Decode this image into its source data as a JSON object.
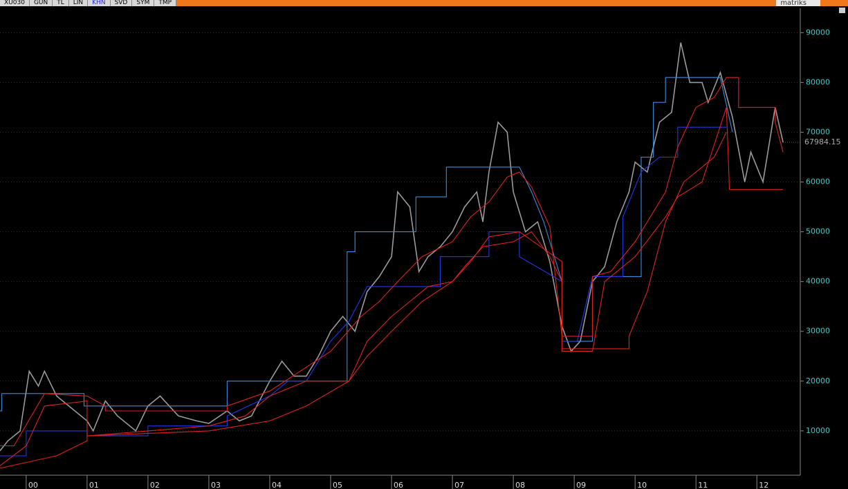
{
  "toolbar": {
    "tabs": [
      "XU030",
      "GUN",
      "TL",
      "LIN",
      "KHN",
      "SVD",
      "SYM",
      "TMP"
    ],
    "brand": "matriks"
  },
  "chart_data": {
    "type": "line",
    "xlim": [
      1999.57,
      2012.69
    ],
    "ylim": [
      1100,
      94900
    ],
    "xticks": [
      {
        "value": 2000,
        "label": "00"
      },
      {
        "value": 2001,
        "label": "01"
      },
      {
        "value": 2002,
        "label": "02"
      },
      {
        "value": 2003,
        "label": "03"
      },
      {
        "value": 2004,
        "label": "04"
      },
      {
        "value": 2005,
        "label": "05"
      },
      {
        "value": 2006,
        "label": "06"
      },
      {
        "value": 2007,
        "label": "07"
      },
      {
        "value": 2008,
        "label": "08"
      },
      {
        "value": 2009,
        "label": "09"
      },
      {
        "value": 2010,
        "label": "10"
      },
      {
        "value": 2011,
        "label": "11"
      },
      {
        "value": 2012,
        "label": "12"
      }
    ],
    "yticks": [
      10000,
      20000,
      30000,
      40000,
      50000,
      60000,
      70000,
      80000,
      90000
    ],
    "grid": true,
    "last_price": 67984.15,
    "series": [
      {
        "color": "#9a9a9a",
        "x": [
          1999.57,
          1999.7,
          1999.9,
          2000.05,
          2000.2,
          2000.3,
          2000.5,
          2000.8,
          2001.0,
          2001.1,
          2001.3,
          2001.5,
          2001.8,
          2002.0,
          2002.2,
          2002.5,
          2002.8,
          2003.0,
          2003.3,
          2003.5,
          2003.7,
          2004.0,
          2004.2,
          2004.4,
          2004.6,
          2004.8,
          2005.0,
          2005.2,
          2005.4,
          2005.6,
          2005.8,
          2006.0,
          2006.1,
          2006.3,
          2006.45,
          2006.6,
          2006.8,
          2007.0,
          2007.2,
          2007.4,
          2007.5,
          2007.6,
          2007.75,
          2007.9,
          2008.0,
          2008.2,
          2008.4,
          2008.6,
          2008.8,
          2008.95,
          2009.1,
          2009.3,
          2009.5,
          2009.7,
          2009.9,
          2010.0,
          2010.2,
          2010.4,
          2010.6,
          2010.75,
          2010.9,
          2011.1,
          2011.2,
          2011.4,
          2011.6,
          2011.8,
          2011.9,
          2012.1,
          2012.3,
          2012.43
        ],
        "values": [
          6000,
          8000,
          10000,
          22000,
          19000,
          22000,
          17000,
          14000,
          12000,
          10000,
          16000,
          13000,
          10000,
          15000,
          17000,
          13000,
          12000,
          11500,
          14000,
          12000,
          13000,
          20000,
          24000,
          21000,
          21000,
          25000,
          30000,
          33000,
          30000,
          38000,
          41000,
          45000,
          58000,
          55000,
          42000,
          45000,
          47000,
          50000,
          55000,
          58000,
          52000,
          62000,
          72000,
          70000,
          58000,
          50000,
          52000,
          44000,
          31000,
          26000,
          28000,
          40000,
          43000,
          52000,
          58000,
          64000,
          62000,
          72000,
          74000,
          88000,
          80000,
          80000,
          76000,
          82000,
          73000,
          60000,
          66000,
          60000,
          75000,
          68000
        ]
      },
      {
        "color": "#3c8cdc",
        "x": [
          1999.57,
          1999.6,
          1999.6,
          2000.95,
          2000.95,
          2003.3,
          2003.3,
          2005.27,
          2005.27,
          2005.4,
          2005.4,
          2006.4,
          2006.4,
          2006.9,
          2006.9,
          2008.1,
          2008.3,
          2008.5,
          2008.8,
          2008.8,
          2009.3,
          2009.3,
          2010.1,
          2010.1,
          2010.3,
          2010.3,
          2010.5,
          2010.5,
          2011.4,
          2011.6
        ],
        "values": [
          14000,
          14000,
          17500,
          17500,
          15000,
          15000,
          20000,
          20000,
          46000,
          46000,
          50000,
          50000,
          57000,
          57000,
          63000,
          63000,
          58000,
          52000,
          40000,
          28000,
          28000,
          41000,
          41000,
          65000,
          65000,
          76000,
          76000,
          81000,
          81000,
          70000
        ]
      },
      {
        "color": "#2038e8",
        "x": [
          1999.57,
          2000.0,
          2000.0,
          2001.0,
          2001.0,
          2002.0,
          2002.0,
          2003.3,
          2003.3,
          2004.0,
          2004.3,
          2004.6,
          2005.0,
          2005.3,
          2005.6,
          2006.0,
          2006.8,
          2006.8,
          2007.6,
          2007.6,
          2008.1,
          2008.1,
          2008.8,
          2008.8,
          2009.05,
          2009.3,
          2009.8,
          2009.8,
          2010.1,
          2010.4,
          2010.7,
          2010.7,
          2011.5
        ],
        "values": [
          5000,
          5000,
          10000,
          10000,
          9000,
          9000,
          11000,
          11000,
          13000,
          17000,
          20000,
          20000,
          28000,
          32000,
          39000,
          39000,
          39000,
          45000,
          45000,
          50000,
          50000,
          45000,
          40000,
          28000,
          28000,
          41000,
          41000,
          53000,
          62000,
          65000,
          65000,
          71000,
          71000
        ]
      },
      {
        "color": "#e02020",
        "x": [
          1999.57,
          1999.8,
          2000.3,
          2001.0,
          2001.0,
          2001.3,
          2001.3,
          2003.3,
          2003.3,
          2004.0,
          2004.5,
          2005.0,
          2005.5,
          2005.8,
          2006.1,
          2006.5,
          2007.0,
          2007.3,
          2007.6,
          2007.9,
          2008.1,
          2008.3,
          2008.6,
          2008.8,
          2009.3,
          2009.3,
          2009.6,
          2010.0,
          2010.5,
          2010.7,
          2011.0,
          2011.3,
          2011.5,
          2011.7,
          2011.7,
          2012.3,
          2012.3,
          2012.43
        ],
        "values": [
          7000,
          7000,
          17500,
          17000,
          17000,
          15000,
          14000,
          14000,
          15000,
          18000,
          22000,
          26000,
          33000,
          36000,
          40000,
          45000,
          48000,
          53000,
          56000,
          61000,
          62000,
          59000,
          51000,
          29000,
          29000,
          41000,
          42000,
          48000,
          58000,
          67000,
          75000,
          77000,
          81000,
          81000,
          75000,
          75000,
          72000,
          66000
        ]
      },
      {
        "color": "#e02020",
        "x": [
          1999.57,
          2000.0,
          2000.3,
          2001.0,
          2001.0,
          2002.0,
          2003.0,
          2003.6,
          2004.0,
          2004.6,
          2005.3,
          2005.6,
          2006.0,
          2006.6,
          2007.0,
          2007.2,
          2007.5,
          2008.0,
          2008.3,
          2008.6,
          2008.8,
          2008.8,
          2009.3,
          2009.5,
          2010.0,
          2010.5,
          2010.7,
          2011.1,
          2011.5,
          2011.55,
          2012.43
        ],
        "values": [
          3000,
          7000,
          15000,
          16000,
          9000,
          10000,
          11000,
          13000,
          17000,
          20000,
          20000,
          28000,
          33000,
          39000,
          40000,
          43000,
          47000,
          48000,
          50000,
          45000,
          40000,
          26000,
          26000,
          40000,
          45000,
          53000,
          57000,
          60000,
          75000,
          58500,
          58500
        ]
      },
      {
        "color": "#e02020",
        "x": [
          1999.57,
          2000.5,
          2001.0,
          2001.0,
          2003.0,
          2004.0,
          2004.6,
          2005.3,
          2005.6,
          2006.0,
          2006.5,
          2007.0,
          2007.3,
          2007.6,
          2008.1,
          2008.8,
          2008.8,
          2009.9,
          2009.9,
          2010.2,
          2010.5,
          2010.8,
          2011.1,
          2011.3,
          2011.5
        ],
        "values": [
          2500,
          5000,
          8000,
          9000,
          10000,
          12000,
          15000,
          20000,
          25000,
          30000,
          36000,
          40000,
          44000,
          49000,
          50000,
          44000,
          26500,
          26500,
          29000,
          38000,
          52000,
          60000,
          63000,
          65000,
          70000
        ]
      }
    ]
  }
}
